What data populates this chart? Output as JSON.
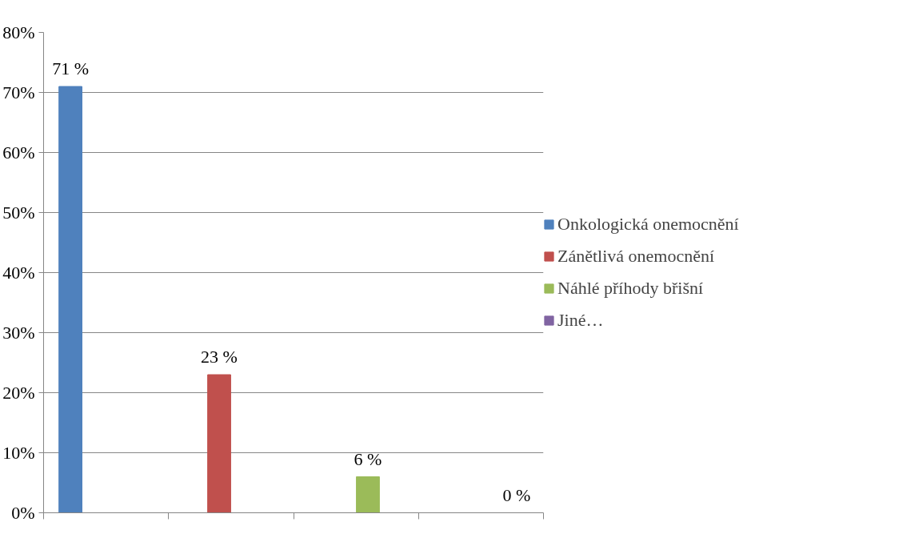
{
  "chart_data": {
    "type": "bar",
    "categories": [
      null,
      null,
      null,
      null
    ],
    "series": [
      {
        "name": "Onkologická onemocnění",
        "color": "#4f81bd",
        "values": [
          71,
          null,
          null,
          null
        ],
        "value_labels": [
          "71 %",
          null,
          null,
          null
        ]
      },
      {
        "name": "Zánětlivá onemocnění",
        "color": "#c0504d",
        "values": [
          null,
          23,
          null,
          null
        ],
        "value_labels": [
          null,
          "23 %",
          null,
          null
        ]
      },
      {
        "name": "Náhlé příhody břišní",
        "color": "#9bbb59",
        "values": [
          null,
          null,
          6,
          null
        ],
        "value_labels": [
          null,
          null,
          "6 %",
          null
        ]
      },
      {
        "name": "Jiné…",
        "color": "#8064a2",
        "values": [
          null,
          null,
          null,
          0
        ],
        "value_labels": [
          null,
          null,
          null,
          "0 %"
        ]
      }
    ],
    "ylim": [
      0,
      80
    ],
    "yticks": [
      {
        "value": 0,
        "label": "0%"
      },
      {
        "value": 10,
        "label": "10%"
      },
      {
        "value": 20,
        "label": "20%"
      },
      {
        "value": 30,
        "label": "30%"
      },
      {
        "value": 40,
        "label": "40%"
      },
      {
        "value": 50,
        "label": "50%"
      },
      {
        "value": 60,
        "label": "60%"
      },
      {
        "value": 70,
        "label": "70%"
      },
      {
        "value": 80,
        "label": "80%"
      }
    ],
    "grid": "y",
    "legend": "right"
  }
}
